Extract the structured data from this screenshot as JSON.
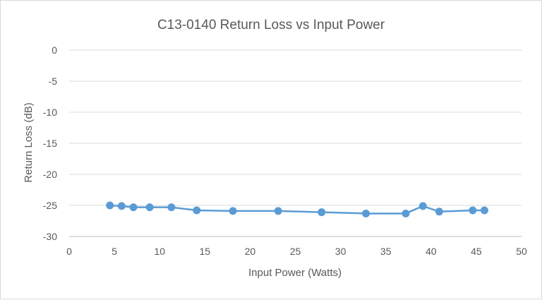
{
  "chart_data": {
    "type": "line",
    "title": "C13-0140 Return Loss vs Input Power",
    "xlabel": "Input Power (Watts)",
    "ylabel": "Return Loss (dB)",
    "xlim": [
      0,
      50
    ],
    "ylim": [
      -30,
      0
    ],
    "xticks": [
      0,
      5,
      10,
      15,
      20,
      25,
      30,
      35,
      40,
      45,
      50
    ],
    "yticks": [
      0,
      -5,
      -10,
      -15,
      -20,
      -25,
      -30
    ],
    "grid": "horizontal",
    "legend": "none",
    "series": [
      {
        "color": "#5b9bd5",
        "x": [
          4.5,
          5.8,
          7.1,
          8.9,
          11.3,
          14.1,
          18.1,
          23.1,
          27.9,
          32.8,
          37.2,
          39.1,
          40.9,
          44.6,
          45.9
        ],
        "y": [
          -25.0,
          -25.1,
          -25.3,
          -25.3,
          -25.3,
          -25.8,
          -25.9,
          -25.9,
          -26.1,
          -26.3,
          -26.3,
          -25.1,
          -26.0,
          -25.8,
          -25.8
        ]
      }
    ]
  }
}
